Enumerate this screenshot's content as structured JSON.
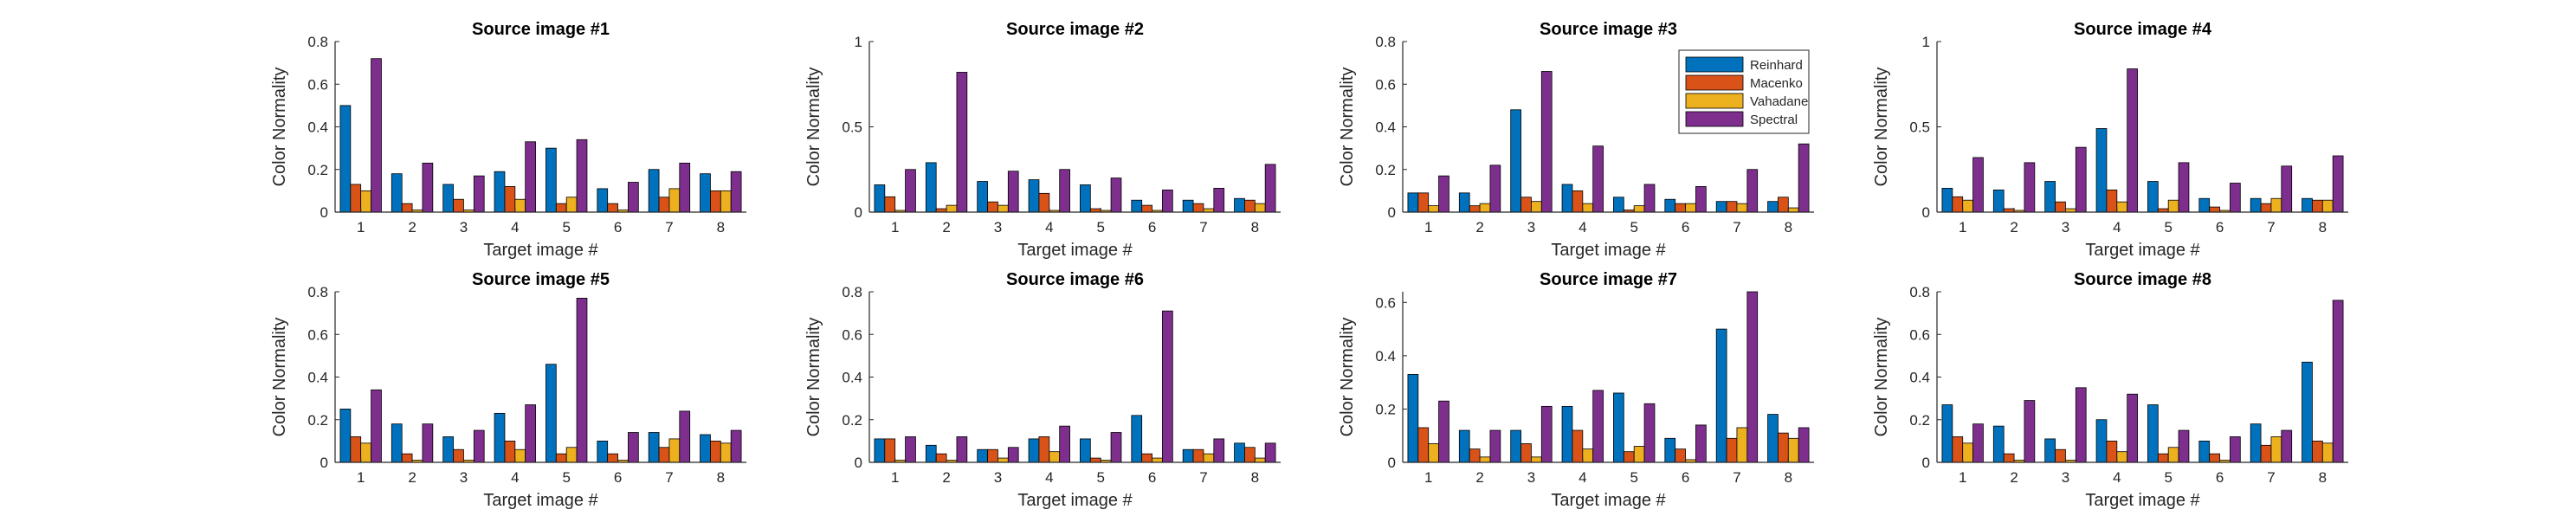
{
  "colors": {
    "reinhard": "#0072BD",
    "macenko": "#D95319",
    "vahadane": "#EDB120",
    "spectral": "#7E2F8E"
  },
  "chart_data": [
    {
      "type": "bar",
      "title": "Source image #1",
      "xlabel": "Target image #",
      "ylabel": "Color Normality",
      "categories": [
        "1",
        "2",
        "3",
        "4",
        "5",
        "6",
        "7",
        "8"
      ],
      "ylim": [
        0,
        0.8
      ],
      "yticks": [
        "0",
        "0.2",
        "0.4",
        "0.6",
        "0.8"
      ],
      "yticks_values": [
        0,
        0.2,
        0.4,
        0.6,
        0.8
      ],
      "series": [
        {
          "name": "Reinhard",
          "values": [
            0.5,
            0.18,
            0.13,
            0.19,
            0.3,
            0.11,
            0.2,
            0.18
          ]
        },
        {
          "name": "Macenko",
          "values": [
            0.13,
            0.04,
            0.06,
            0.12,
            0.04,
            0.04,
            0.07,
            0.1
          ]
        },
        {
          "name": "Vahadane",
          "values": [
            0.1,
            0.01,
            0.01,
            0.06,
            0.07,
            0.01,
            0.11,
            0.1
          ]
        },
        {
          "name": "Spectral",
          "values": [
            0.72,
            0.23,
            0.17,
            0.33,
            0.34,
            0.14,
            0.23,
            0.19
          ]
        }
      ],
      "grid": false,
      "legend": false
    },
    {
      "type": "bar",
      "title": "Source image #2",
      "xlabel": "Target image #",
      "ylabel": "Color Normality",
      "categories": [
        "1",
        "2",
        "3",
        "4",
        "5",
        "6",
        "7",
        "8"
      ],
      "ylim": [
        0,
        1
      ],
      "yticks": [
        "0",
        "0.5",
        "1"
      ],
      "yticks_values": [
        0,
        0.5,
        1
      ],
      "series": [
        {
          "name": "Reinhard",
          "values": [
            0.16,
            0.29,
            0.18,
            0.19,
            0.16,
            0.07,
            0.07,
            0.08
          ]
        },
        {
          "name": "Macenko",
          "values": [
            0.09,
            0.02,
            0.06,
            0.11,
            0.02,
            0.04,
            0.05,
            0.07
          ]
        },
        {
          "name": "Vahadane",
          "values": [
            0.01,
            0.04,
            0.04,
            0.01,
            0.01,
            0.01,
            0.02,
            0.05
          ]
        },
        {
          "name": "Spectral",
          "values": [
            0.25,
            0.82,
            0.24,
            0.25,
            0.2,
            0.13,
            0.14,
            0.28
          ]
        }
      ],
      "grid": false,
      "legend": false
    },
    {
      "type": "bar",
      "title": "Source image #3",
      "xlabel": "Target image #",
      "ylabel": "Color Normality",
      "categories": [
        "1",
        "2",
        "3",
        "4",
        "5",
        "6",
        "7",
        "8"
      ],
      "ylim": [
        0,
        0.8
      ],
      "yticks": [
        "0",
        "0.2",
        "0.4",
        "0.6",
        "0.8"
      ],
      "yticks_values": [
        0,
        0.2,
        0.4,
        0.6,
        0.8
      ],
      "series": [
        {
          "name": "Reinhard",
          "values": [
            0.09,
            0.09,
            0.48,
            0.13,
            0.07,
            0.06,
            0.05,
            0.05
          ]
        },
        {
          "name": "Macenko",
          "values": [
            0.09,
            0.03,
            0.07,
            0.1,
            0.01,
            0.04,
            0.05,
            0.07
          ]
        },
        {
          "name": "Vahadane",
          "values": [
            0.03,
            0.04,
            0.05,
            0.04,
            0.03,
            0.04,
            0.04,
            0.02
          ]
        },
        {
          "name": "Spectral",
          "values": [
            0.17,
            0.22,
            0.66,
            0.31,
            0.13,
            0.12,
            0.2,
            0.32
          ]
        }
      ],
      "grid": false,
      "legend": true,
      "legend_position": "top-right",
      "legend_entries": [
        "Reinhard",
        "Macenko",
        "Vahadane",
        "Spectral"
      ]
    },
    {
      "type": "bar",
      "title": "Source image #4",
      "xlabel": "Target image #",
      "ylabel": "Color Normality",
      "categories": [
        "1",
        "2",
        "3",
        "4",
        "5",
        "6",
        "7",
        "8"
      ],
      "ylim": [
        0,
        1
      ],
      "yticks": [
        "0",
        "0.5",
        "1"
      ],
      "yticks_values": [
        0,
        0.5,
        1
      ],
      "series": [
        {
          "name": "Reinhard",
          "values": [
            0.14,
            0.13,
            0.18,
            0.49,
            0.18,
            0.08,
            0.08,
            0.08
          ]
        },
        {
          "name": "Macenko",
          "values": [
            0.09,
            0.02,
            0.06,
            0.13,
            0.02,
            0.03,
            0.05,
            0.07
          ]
        },
        {
          "name": "Vahadane",
          "values": [
            0.07,
            0.01,
            0.02,
            0.06,
            0.07,
            0.01,
            0.08,
            0.07
          ]
        },
        {
          "name": "Spectral",
          "values": [
            0.32,
            0.29,
            0.38,
            0.84,
            0.29,
            0.17,
            0.27,
            0.33
          ]
        }
      ],
      "grid": false,
      "legend": false
    },
    {
      "type": "bar",
      "title": "Source image #5",
      "xlabel": "Target image #",
      "ylabel": "Color Normality",
      "categories": [
        "1",
        "2",
        "3",
        "4",
        "5",
        "6",
        "7",
        "8"
      ],
      "ylim": [
        0,
        0.8
      ],
      "yticks": [
        "0",
        "0.2",
        "0.4",
        "0.6",
        "0.8"
      ],
      "yticks_values": [
        0,
        0.2,
        0.4,
        0.6,
        0.8
      ],
      "series": [
        {
          "name": "Reinhard",
          "values": [
            0.25,
            0.18,
            0.12,
            0.23,
            0.46,
            0.1,
            0.14,
            0.13
          ]
        },
        {
          "name": "Macenko",
          "values": [
            0.12,
            0.04,
            0.06,
            0.1,
            0.04,
            0.04,
            0.07,
            0.1
          ]
        },
        {
          "name": "Vahadane",
          "values": [
            0.09,
            0.01,
            0.01,
            0.06,
            0.07,
            0.01,
            0.11,
            0.09
          ]
        },
        {
          "name": "Spectral",
          "values": [
            0.34,
            0.18,
            0.15,
            0.27,
            0.77,
            0.14,
            0.24,
            0.15
          ]
        }
      ],
      "grid": false,
      "legend": false
    },
    {
      "type": "bar",
      "title": "Source image #6",
      "xlabel": "Target image #",
      "ylabel": "Color Normality",
      "categories": [
        "1",
        "2",
        "3",
        "4",
        "5",
        "6",
        "7",
        "8"
      ],
      "ylim": [
        0,
        0.8
      ],
      "yticks": [
        "0",
        "0.2",
        "0.4",
        "0.6",
        "0.8"
      ],
      "yticks_values": [
        0,
        0.2,
        0.4,
        0.6,
        0.8
      ],
      "series": [
        {
          "name": "Reinhard",
          "values": [
            0.11,
            0.08,
            0.06,
            0.11,
            0.11,
            0.22,
            0.06,
            0.09
          ]
        },
        {
          "name": "Macenko",
          "values": [
            0.11,
            0.04,
            0.06,
            0.12,
            0.02,
            0.04,
            0.06,
            0.07
          ]
        },
        {
          "name": "Vahadane",
          "values": [
            0.01,
            0.01,
            0.02,
            0.05,
            0.01,
            0.02,
            0.04,
            0.02
          ]
        },
        {
          "name": "Spectral",
          "values": [
            0.12,
            0.12,
            0.07,
            0.17,
            0.14,
            0.71,
            0.11,
            0.09
          ]
        }
      ],
      "grid": false,
      "legend": false
    },
    {
      "type": "bar",
      "title": "Source image #7",
      "xlabel": "Target image #",
      "ylabel": "Color Normality",
      "categories": [
        "1",
        "2",
        "3",
        "4",
        "5",
        "6",
        "7",
        "8"
      ],
      "ylim": [
        0,
        0.64
      ],
      "yticks": [
        "0",
        "0.2",
        "0.4",
        "0.6"
      ],
      "yticks_values": [
        0,
        0.2,
        0.4,
        0.6
      ],
      "series": [
        {
          "name": "Reinhard",
          "values": [
            0.33,
            0.12,
            0.12,
            0.21,
            0.26,
            0.09,
            0.5,
            0.18
          ]
        },
        {
          "name": "Macenko",
          "values": [
            0.13,
            0.05,
            0.07,
            0.12,
            0.04,
            0.05,
            0.09,
            0.11
          ]
        },
        {
          "name": "Vahadane",
          "values": [
            0.07,
            0.02,
            0.02,
            0.05,
            0.06,
            0.01,
            0.13,
            0.09
          ]
        },
        {
          "name": "Spectral",
          "values": [
            0.23,
            0.12,
            0.21,
            0.27,
            0.22,
            0.14,
            0.64,
            0.13
          ]
        }
      ],
      "grid": false,
      "legend": false
    },
    {
      "type": "bar",
      "title": "Source image #8",
      "xlabel": "Target image #",
      "ylabel": "Color Normality",
      "categories": [
        "1",
        "2",
        "3",
        "4",
        "5",
        "6",
        "7",
        "8"
      ],
      "ylim": [
        0,
        0.8
      ],
      "yticks": [
        "0",
        "0.2",
        "0.4",
        "0.6",
        "0.8"
      ],
      "yticks_values": [
        0,
        0.2,
        0.4,
        0.6,
        0.8
      ],
      "series": [
        {
          "name": "Reinhard",
          "values": [
            0.27,
            0.17,
            0.11,
            0.2,
            0.27,
            0.1,
            0.18,
            0.47
          ]
        },
        {
          "name": "Macenko",
          "values": [
            0.12,
            0.04,
            0.06,
            0.1,
            0.04,
            0.04,
            0.08,
            0.1
          ]
        },
        {
          "name": "Vahadane",
          "values": [
            0.09,
            0.01,
            0.01,
            0.05,
            0.07,
            0.01,
            0.12,
            0.09
          ]
        },
        {
          "name": "Spectral",
          "values": [
            0.18,
            0.29,
            0.35,
            0.32,
            0.15,
            0.12,
            0.15,
            0.76
          ]
        }
      ],
      "grid": false,
      "legend": false
    }
  ]
}
